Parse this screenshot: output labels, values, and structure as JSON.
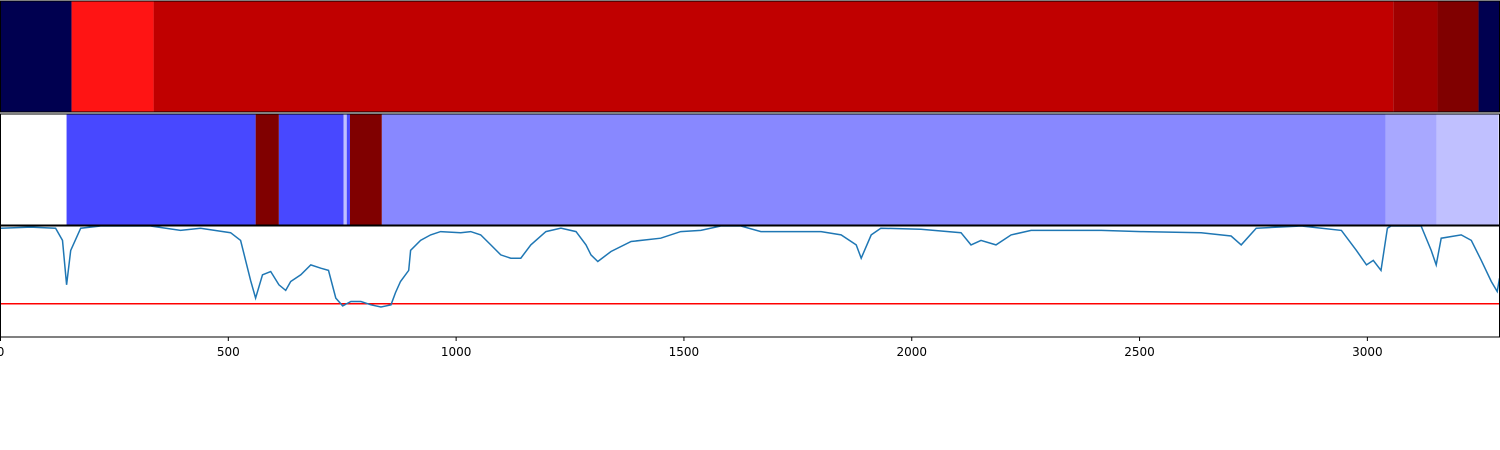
{
  "chart_data": [
    {
      "type": "segments",
      "xlim": [
        0,
        3290
      ],
      "segments": [
        {
          "start": 0,
          "end": 156,
          "color": "#000050"
        },
        {
          "start": 156,
          "end": 336,
          "color": "#ff1414"
        },
        {
          "start": 336,
          "end": 3057,
          "color": "#c00000"
        },
        {
          "start": 3057,
          "end": 3154,
          "color": "#a00000"
        },
        {
          "start": 3154,
          "end": 3244,
          "color": "#800000"
        },
        {
          "start": 3244,
          "end": 3290,
          "color": "#000050"
        }
      ]
    },
    {
      "type": "segments",
      "xlim": [
        0,
        3290
      ],
      "segments": [
        {
          "start": 0,
          "end": 145,
          "color": "#ffffff"
        },
        {
          "start": 145,
          "end": 560,
          "color": "#4848ff"
        },
        {
          "start": 560,
          "end": 611,
          "color": "#800000"
        },
        {
          "start": 611,
          "end": 753,
          "color": "#4848ff"
        },
        {
          "start": 753,
          "end": 760,
          "color": "#c0c0ff"
        },
        {
          "start": 760,
          "end": 767,
          "color": "#4848ff"
        },
        {
          "start": 767,
          "end": 837,
          "color": "#800000"
        },
        {
          "start": 837,
          "end": 3040,
          "color": "#8888ff"
        },
        {
          "start": 3040,
          "end": 3152,
          "color": "#a8a8ff"
        },
        {
          "start": 3152,
          "end": 3288,
          "color": "#c0c0ff"
        }
      ]
    },
    {
      "type": "line",
      "xlim": [
        0,
        3290
      ],
      "ylim": [
        0,
        1
      ],
      "xticks": [
        0,
        500,
        1000,
        1500,
        2000,
        2500,
        3000
      ],
      "threshold": 0.3,
      "threshold_color": "#ff0000",
      "series": [
        {
          "color": "#1f77b4",
          "x": [
            0,
            66,
            121,
            136,
            145,
            154,
            176,
            220,
            329,
            395,
            439,
            505,
            527,
            538,
            549,
            560,
            575,
            593,
            611,
            626,
            637,
            659,
            681,
            703,
            720,
            736,
            751,
            769,
            791,
            813,
            835,
            857,
            867,
            878,
            896,
            900,
            922,
            944,
            966,
            1010,
            1032,
            1054,
            1076,
            1098,
            1120,
            1142,
            1164,
            1197,
            1230,
            1263,
            1285,
            1296,
            1311,
            1340,
            1384,
            1449,
            1493,
            1537,
            1581,
            1625,
            1669,
            1735,
            1801,
            1845,
            1878,
            1889,
            1911,
            1932,
            2020,
            2108,
            2130,
            2152,
            2185,
            2218,
            2262,
            2416,
            2503,
            2635,
            2701,
            2723,
            2756,
            2855,
            2943,
            2976,
            2998,
            3013,
            3030,
            3044,
            3052,
            3118,
            3140,
            3151,
            3162,
            3206,
            3228,
            3250,
            3272,
            3285,
            3290
          ],
          "values": [
            0.98,
            0.99,
            0.98,
            0.87,
            0.47,
            0.78,
            0.98,
            1.0,
            1.0,
            0.96,
            0.98,
            0.94,
            0.87,
            0.69,
            0.51,
            0.35,
            0.56,
            0.59,
            0.47,
            0.42,
            0.5,
            0.56,
            0.65,
            0.62,
            0.6,
            0.35,
            0.28,
            0.32,
            0.32,
            0.29,
            0.27,
            0.29,
            0.4,
            0.5,
            0.6,
            0.78,
            0.87,
            0.92,
            0.95,
            0.94,
            0.95,
            0.92,
            0.83,
            0.74,
            0.71,
            0.71,
            0.83,
            0.95,
            0.98,
            0.95,
            0.83,
            0.74,
            0.68,
            0.77,
            0.86,
            0.89,
            0.95,
            0.96,
            1.0,
            1.0,
            0.95,
            0.95,
            0.95,
            0.92,
            0.83,
            0.71,
            0.92,
            0.98,
            0.97,
            0.94,
            0.83,
            0.87,
            0.83,
            0.92,
            0.96,
            0.96,
            0.95,
            0.94,
            0.91,
            0.83,
            0.98,
            1.0,
            0.96,
            0.78,
            0.65,
            0.69,
            0.6,
            0.98,
            1.0,
            1.0,
            0.78,
            0.65,
            0.89,
            0.92,
            0.87,
            0.69,
            0.5,
            0.41,
            0.53
          ]
        }
      ]
    }
  ]
}
